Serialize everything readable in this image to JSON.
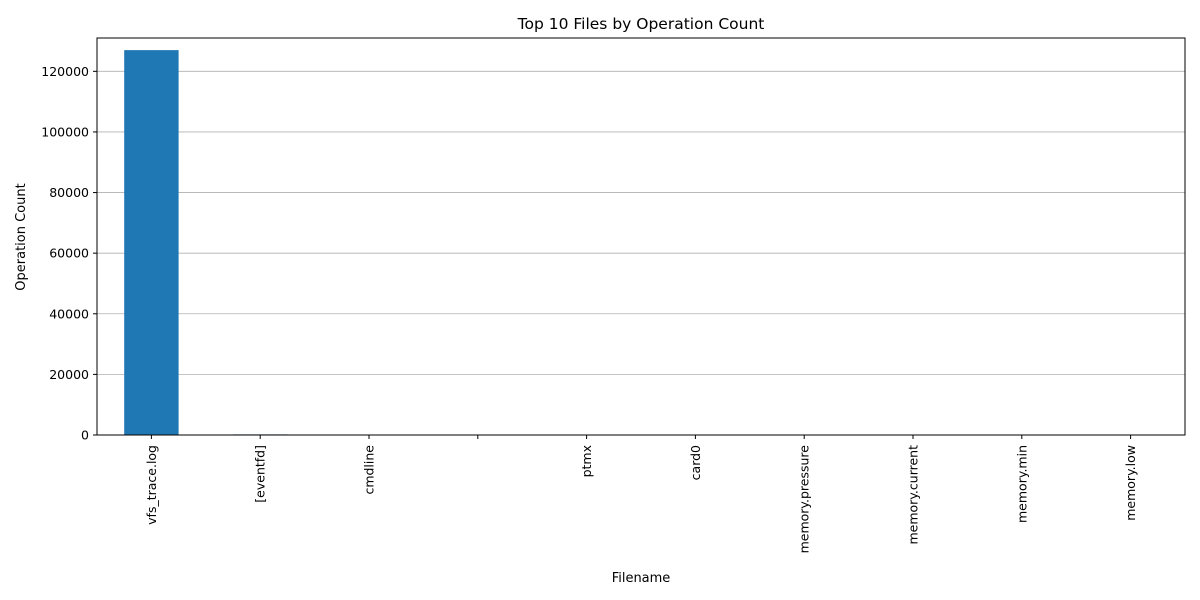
{
  "chart_data": {
    "type": "bar",
    "title": "Top 10 Files by Operation Count",
    "xlabel": "Filename",
    "ylabel": "Operation Count",
    "categories": [
      "vfs_trace.log",
      "[eventfd]",
      "cmdline",
      "",
      "ptmx",
      "card0",
      "memory.pressure",
      "memory.current",
      "memory.min",
      "memory.low"
    ],
    "values": [
      127000,
      200,
      150,
      120,
      100,
      90,
      80,
      70,
      60,
      50
    ],
    "ylim": [
      0,
      131000
    ],
    "yticks": [
      0,
      20000,
      40000,
      60000,
      80000,
      100000,
      120000
    ],
    "grid": "y",
    "bar_color": "#1f77b4"
  }
}
